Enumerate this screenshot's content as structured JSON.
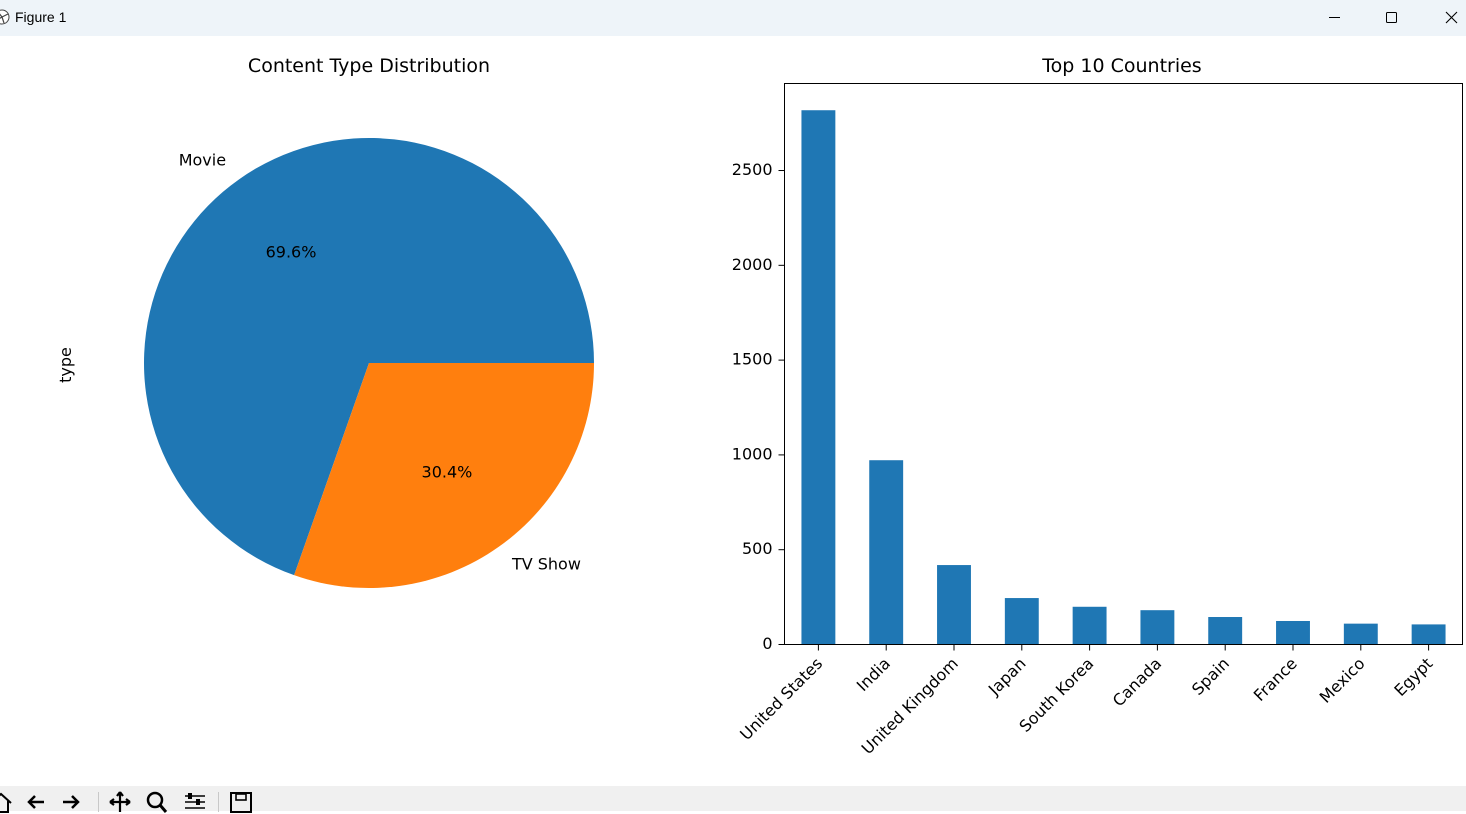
{
  "window": {
    "title": "Figure 1",
    "icons": [
      "matplotlib-logo-icon",
      "minimize-icon",
      "maximize-icon",
      "close-icon"
    ]
  },
  "toolbar": {
    "icons": [
      "home-icon",
      "back-icon",
      "forward-icon",
      "pan-icon",
      "zoom-icon",
      "configure-subplots-icon",
      "save-icon"
    ]
  },
  "colors": {
    "blue": "#1f77b4",
    "orange": "#ff7f0e"
  },
  "chart_data": [
    {
      "type": "pie",
      "title": "Content Type Distribution",
      "ylabel": "type",
      "slices": [
        {
          "label": "Movie",
          "value": 69.6,
          "pct_label": "69.6%",
          "color": "#1f77b4"
        },
        {
          "label": "TV Show",
          "value": 30.4,
          "pct_label": "30.4%",
          "color": "#ff7f0e"
        }
      ]
    },
    {
      "type": "bar",
      "title": "Top 10 Countries",
      "categories": [
        "United States",
        "India",
        "United Kingdom",
        "Japan",
        "South Korea",
        "Canada",
        "Spain",
        "France",
        "Mexico",
        "Egypt"
      ],
      "values": [
        2818,
        972,
        419,
        245,
        199,
        181,
        145,
        124,
        110,
        106
      ],
      "ylim": [
        0,
        2959
      ],
      "yticks": [
        0,
        500,
        1000,
        1500,
        2000,
        2500
      ],
      "color": "#1f77b4",
      "grid": false
    }
  ]
}
